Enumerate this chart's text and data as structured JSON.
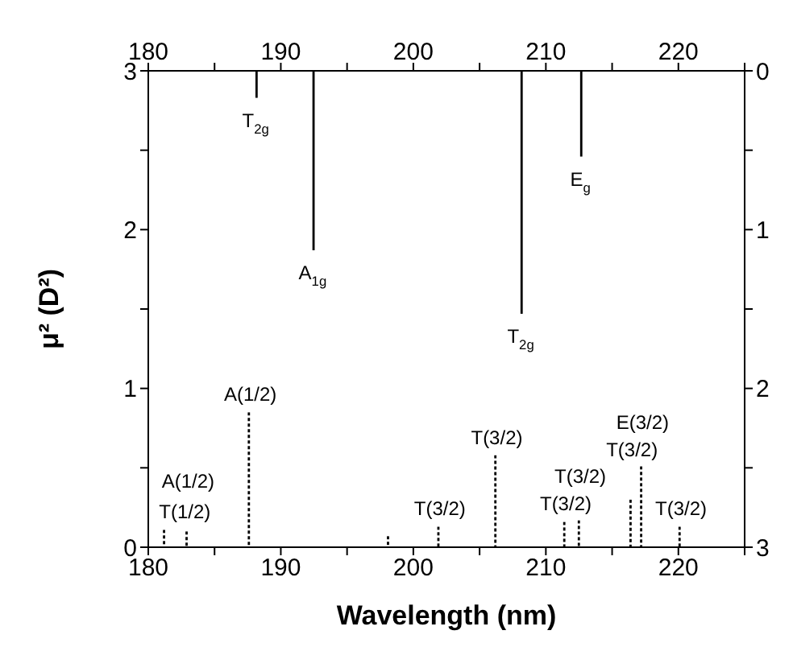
{
  "chart_data": {
    "type": "bar",
    "xlabel": "Wavelength (nm)",
    "ylabel": "μ² (D²)",
    "xlim": [
      180,
      225
    ],
    "xticks": [
      180,
      {
        "value": 185,
        "label": null
      },
      190,
      {
        "value": 195,
        "label": null
      },
      200,
      {
        "value": 205,
        "label": null
      },
      210,
      {
        "value": 215,
        "label": null
      },
      220,
      {
        "value": 225,
        "label": null
      }
    ],
    "x2lim": [
      180,
      225
    ],
    "x2ticks": [
      180,
      {
        "value": 185,
        "label": null
      },
      190,
      {
        "value": 195,
        "label": null
      },
      200,
      {
        "value": 205,
        "label": null
      },
      210,
      {
        "value": 215,
        "label": null
      },
      220,
      {
        "value": 225,
        "label": null
      }
    ],
    "ylim": [
      0,
      3
    ],
    "yticks": [
      0,
      {
        "value": 0.5,
        "label": null
      },
      1,
      {
        "value": 1.5,
        "label": null
      },
      2,
      {
        "value": 2.5,
        "label": null
      },
      3
    ],
    "y2lim": [
      3,
      0
    ],
    "y2ticks": [
      0,
      {
        "value": 0.5,
        "label": null
      },
      1,
      {
        "value": 1.5,
        "label": null
      },
      2,
      {
        "value": 2.5,
        "label": null
      },
      3
    ],
    "series": [
      {
        "color": "#000000",
        "line_style": "dotted",
        "x": [
          181.3,
          183.0,
          187.7,
          198.2,
          202.0,
          206.3,
          211.5,
          212.6,
          216.5,
          217.3,
          220.2
        ],
        "values": [
          0.11,
          0.1,
          0.85,
          0.07,
          0.13,
          0.58,
          0.16,
          0.17,
          0.3,
          0.51,
          0.13
        ]
      },
      {
        "color": "#000000",
        "line_style": "solid",
        "axis": "y2",
        "x": [
          188.1,
          192.4,
          208.1,
          212.6
        ],
        "values": [
          0.17,
          1.13,
          1.53,
          0.54
        ]
      }
    ],
    "annotations": [
      {
        "text": "T$_{2g}$",
        "x": 188.1,
        "y": 2.83
      },
      {
        "text": "A$_{1g}$",
        "x": 192.4,
        "y": 1.87
      },
      {
        "text": "T$_{2g}$",
        "x": 208.1,
        "y": 1.47
      },
      {
        "text": "E$_{g}$",
        "x": 212.6,
        "y": 2.46
      },
      {
        "text": "T(1/2)",
        "x": 181.3,
        "y": 0.11
      },
      {
        "text": "A(1/2)",
        "x": 183.0,
        "y": 0.1
      },
      {
        "text": "A(1/2)",
        "x": 187.7,
        "y": 0.85
      },
      {
        "text": "T(3/2)",
        "x": 202.0,
        "y": 0.13
      },
      {
        "text": "T(3/2)",
        "x": 206.3,
        "y": 0.58
      },
      {
        "text": "T(3/2)",
        "x": 211.5,
        "y": 0.16
      },
      {
        "text": "T(3/2)",
        "x": 212.6,
        "y": 0.17
      },
      {
        "text": "T(3/2)",
        "x": 216.5,
        "y": 0.3
      },
      {
        "text": "E(3/2)",
        "x": 217.3,
        "y": 0.51
      },
      {
        "text": "T(3/2)",
        "x": 220.2,
        "y": 0.13
      }
    ]
  }
}
